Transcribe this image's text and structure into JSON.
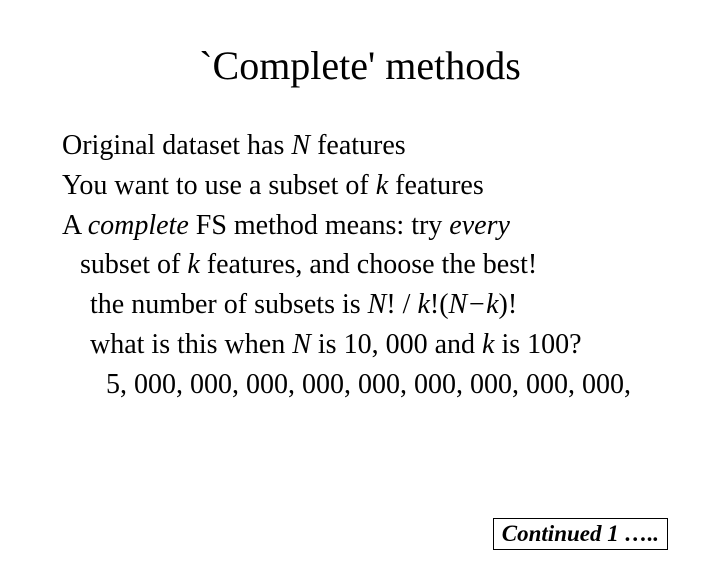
{
  "title": "`Complete' methods",
  "lines": {
    "l1_a": "Original dataset has ",
    "l1_b": "N",
    "l1_c": " features",
    "l2_a": "You want to use a subset of ",
    "l2_b": "k",
    "l2_c": " features",
    "l3_a": "A ",
    "l3_b": "complete",
    "l3_c": " FS method means:  try ",
    "l3_d": "every",
    "l4_a": "subset of ",
    "l4_b": "k",
    "l4_c": " features, and choose the best!",
    "l5_a": "the number of subsets is ",
    "l5_b": "N",
    "l5_c": "! / ",
    "l5_d": "k",
    "l5_e": "!(",
    "l5_f": "N−k",
    "l5_g": ")!",
    "l6_a": "what is this when ",
    "l6_b": "N",
    "l6_c": " is 10, 000 and ",
    "l6_d": "k",
    "l6_e": " is 100?",
    "l7": "5, 000, 000, 000, 000, 000, 000, 000, 000, 000,"
  },
  "footer": "Continued 1 ….."
}
